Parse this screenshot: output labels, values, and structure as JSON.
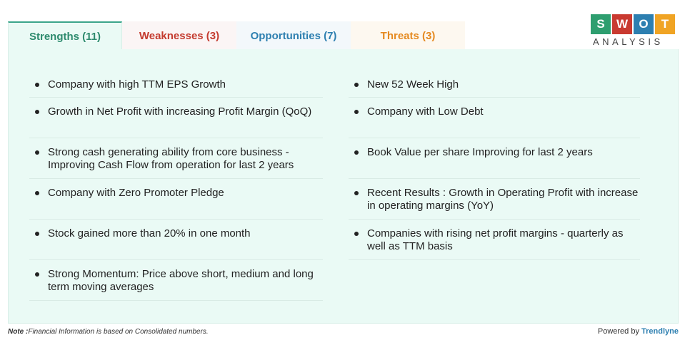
{
  "tabs": [
    {
      "label": "Strengths (11)",
      "color": "#2e8b6e"
    },
    {
      "label": "Weaknesses (3)",
      "color": "#c43b2f"
    },
    {
      "label": "Opportunities (7)",
      "color": "#2d7fb0"
    },
    {
      "label": "Threats (3)",
      "color": "#e58a21"
    }
  ],
  "logo": {
    "letters": [
      "S",
      "W",
      "O",
      "T"
    ],
    "subtitle": "ANALYSIS"
  },
  "strengths": {
    "left": [
      "Company with high TTM EPS Growth",
      "Growth in Net Profit with increasing Profit Margin (QoQ)",
      "Strong cash generating ability from core business - Improving Cash Flow from operation for last 2 years",
      "Company with Zero Promoter Pledge",
      "Stock gained more than 20% in one month",
      "Strong Momentum: Price above short, medium and long term moving averages"
    ],
    "right": [
      "New 52 Week High",
      "Company with Low Debt",
      "Book Value per share Improving for last 2 years",
      "Recent Results : Growth in Operating Profit with increase in operating margins (YoY)",
      "Companies with rising net profit margins - quarterly as well as TTM basis"
    ]
  },
  "footer": {
    "note_label": "Note :",
    "note_text": "Financial Information is based on Consolidated numbers.",
    "powered_prefix": "Powered by",
    "powered_brand": "Trendlyne"
  }
}
